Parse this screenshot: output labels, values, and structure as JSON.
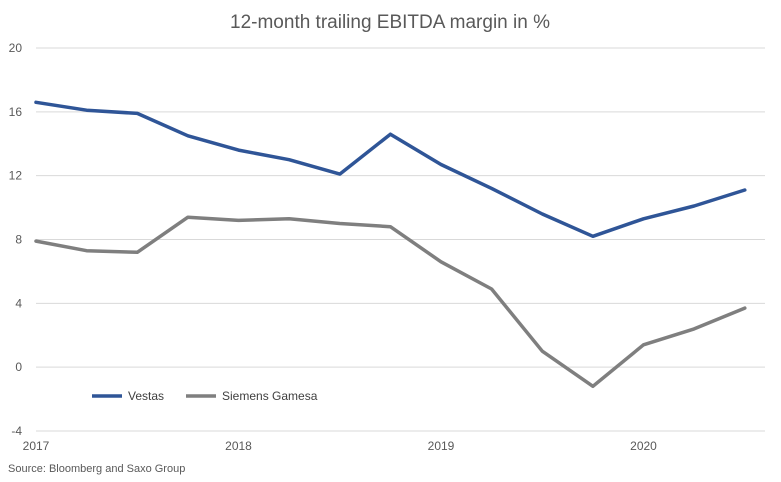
{
  "chart_data": {
    "type": "line",
    "title": "12-month trailing EBITDA margin in %",
    "xlabel": "",
    "ylabel": "",
    "ylim": [
      -4,
      20
    ],
    "y_ticks": [
      "20",
      "16",
      "12",
      "8",
      "4",
      "0",
      "-4"
    ],
    "y_tick_values": [
      20,
      16,
      12,
      8,
      4,
      0,
      -4
    ],
    "x_ticks": [
      "2017",
      "2018",
      "2019",
      "2020"
    ],
    "x_tick_values": [
      2017.0,
      2018.0,
      2019.0,
      2020.0
    ],
    "x": [
      2017.0,
      2017.25,
      2017.5,
      2017.75,
      2018.0,
      2018.25,
      2018.5,
      2018.75,
      2019.0,
      2019.25,
      2019.5,
      2019.75,
      2020.0,
      2020.25,
      2020.5
    ],
    "xlim": [
      2017.0,
      2020.6
    ],
    "grid": true,
    "legend_position": "bottom-left",
    "series": [
      {
        "name": "Vestas",
        "color": "#2f5597",
        "values": [
          16.6,
          16.1,
          15.9,
          14.5,
          13.6,
          13.0,
          12.1,
          14.6,
          12.7,
          11.2,
          9.6,
          8.2,
          9.3,
          10.1,
          11.1
        ]
      },
      {
        "name": "Siemens Gamesa",
        "color": "#7f7f7f",
        "values": [
          7.9,
          7.3,
          7.2,
          9.4,
          9.2,
          9.3,
          9.0,
          8.8,
          6.6,
          4.9,
          1.0,
          -1.2,
          1.4,
          2.4,
          3.7
        ]
      }
    ],
    "source": "Source: Bloomberg and Saxo Group"
  }
}
